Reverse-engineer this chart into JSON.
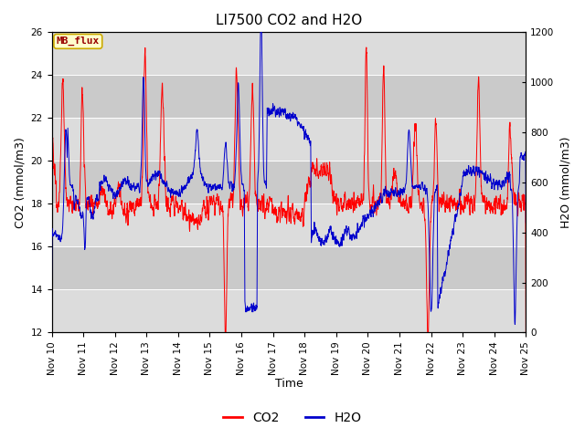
{
  "title": "LI7500 CO2 and H2O",
  "xlabel": "Time",
  "ylabel_left": "CO2 (mmol/m3)",
  "ylabel_right": "H2O (mmol/m3)",
  "ylim_left": [
    12,
    26
  ],
  "ylim_right": [
    0,
    1200
  ],
  "co2_color": "#FF0000",
  "h2o_color": "#0000CC",
  "plot_bg": "#E8E8E8",
  "label_box_text": "MB_flux",
  "label_box_facecolor": "#FFFFCC",
  "label_box_edgecolor": "#CCAA00",
  "label_box_textcolor": "#990000",
  "legend_co2": "CO2",
  "legend_h2o": "H2O",
  "x_start": 10,
  "x_end": 25,
  "x_ticks": [
    10,
    11,
    12,
    13,
    14,
    15,
    16,
    17,
    18,
    19,
    20,
    21,
    22,
    23,
    24,
    25
  ],
  "x_tick_labels": [
    "Nov 10",
    "Nov 11",
    "Nov 12",
    "Nov 13",
    "Nov 14",
    "Nov 15",
    "Nov 16",
    "Nov 17",
    "Nov 18",
    "Nov 19",
    "Nov 20",
    "Nov 21",
    "Nov 22",
    "Nov 23",
    "Nov 24",
    "Nov 25"
  ],
  "band_colors": [
    "#DCDCDC",
    "#CACACA"
  ],
  "title_fontsize": 11,
  "axis_label_fontsize": 9,
  "tick_fontsize": 7.5
}
